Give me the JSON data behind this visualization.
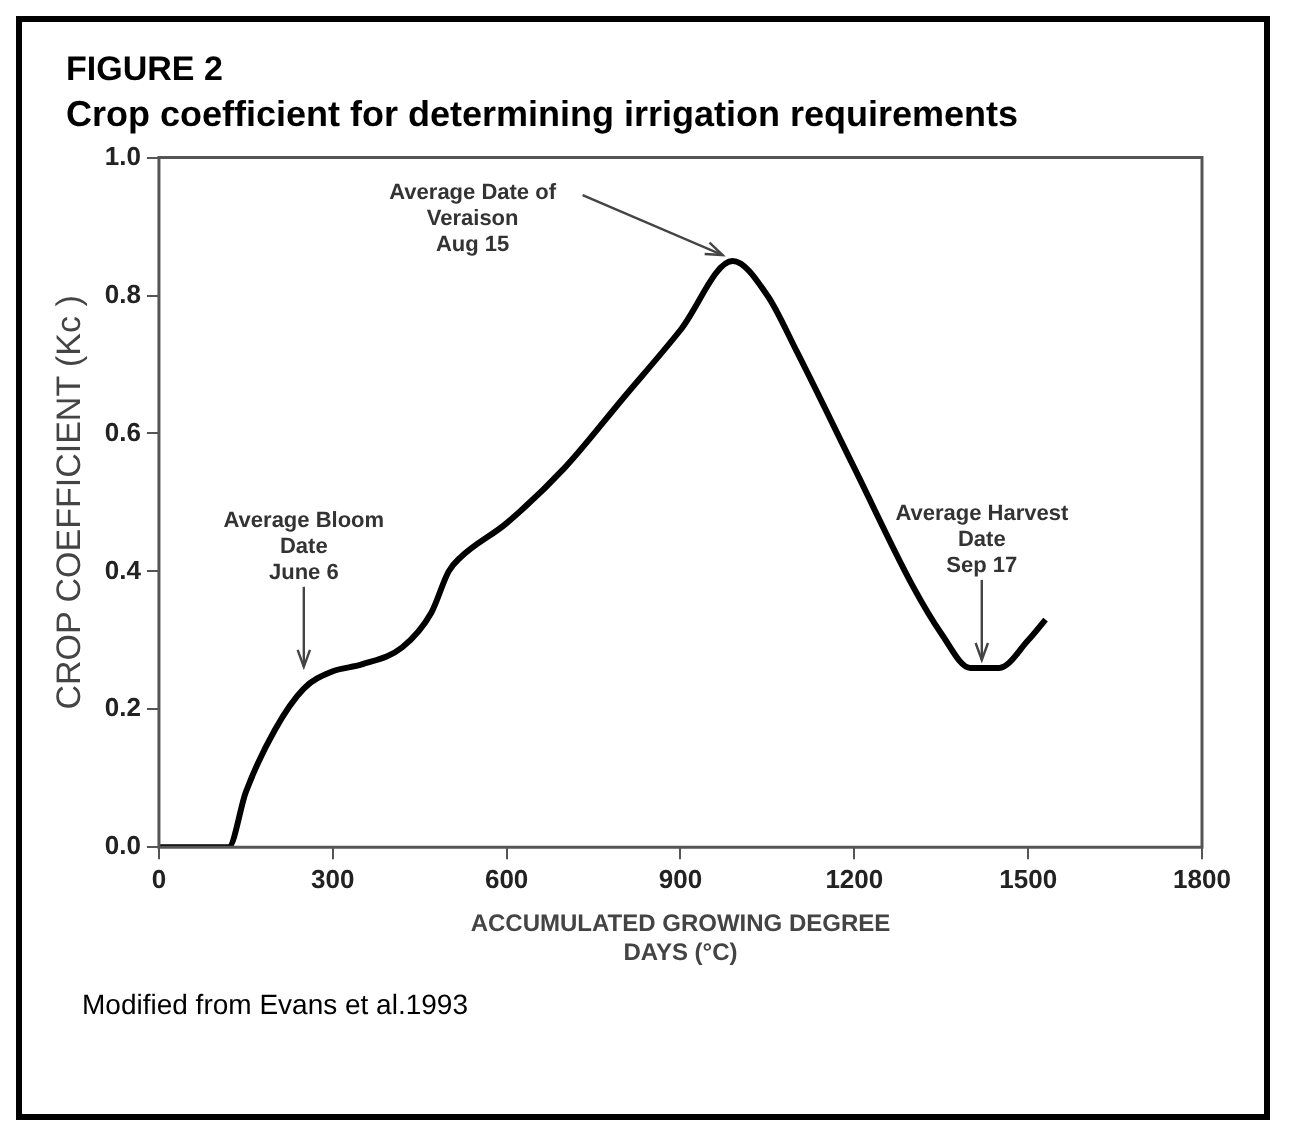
{
  "chart_data": {
    "type": "line",
    "title": "FIGURE 2",
    "subtitle": "Crop coefficient for determining  irrigation requirements",
    "xlabel": "ACCUMULATED GROWING DEGREE DAYS (°C)",
    "ylabel": "CROP COEFFICIENT (Kc )",
    "x": [
      0,
      120,
      150,
      200,
      250,
      300,
      350,
      420,
      470,
      500,
      520,
      600,
      700,
      800,
      900,
      990,
      1050,
      1100,
      1200,
      1300,
      1350,
      1400,
      1450,
      1500,
      1530
    ],
    "series": [
      {
        "color": "#000000",
        "values": [
          0,
          0,
          0.08,
          0.17,
          0.23,
          0.255,
          0.265,
          0.29,
          0.34,
          0.4,
          0.42,
          0.47,
          0.55,
          0.65,
          0.75,
          0.85,
          0.8,
          0.72,
          0.55,
          0.38,
          0.31,
          0.26,
          0.26,
          0.3,
          0.33
        ]
      }
    ],
    "xlim": [
      0,
      1800
    ],
    "xticks": [
      0,
      300,
      600,
      900,
      1200,
      1500,
      1800
    ],
    "ylim": [
      0,
      1
    ],
    "yticks": [
      {
        "value": 0,
        "label": "0.0"
      },
      {
        "value": 0.2,
        "label": "0.2"
      },
      {
        "value": 0.4,
        "label": "0.4"
      },
      {
        "value": 0.6,
        "label": "0.6"
      },
      {
        "value": 0.8,
        "label": "0.8"
      },
      {
        "value": 1,
        "label": "1.0"
      }
    ],
    "grid": false,
    "legend": false,
    "marker": "none",
    "line_style": "solid",
    "annotations": [
      {
        "text": "Average Bloom\nDate\nJune 6",
        "x": 250,
        "y": 0.25
      },
      {
        "text": "Average Date of\nVeraison\nAug 15",
        "x": 990,
        "y": 0.85
      },
      {
        "text": "Average Harvest\nDate\nSep 17",
        "x": 1420,
        "y": 0.26
      },
      "Modified from Evans et al.1993"
    ]
  }
}
